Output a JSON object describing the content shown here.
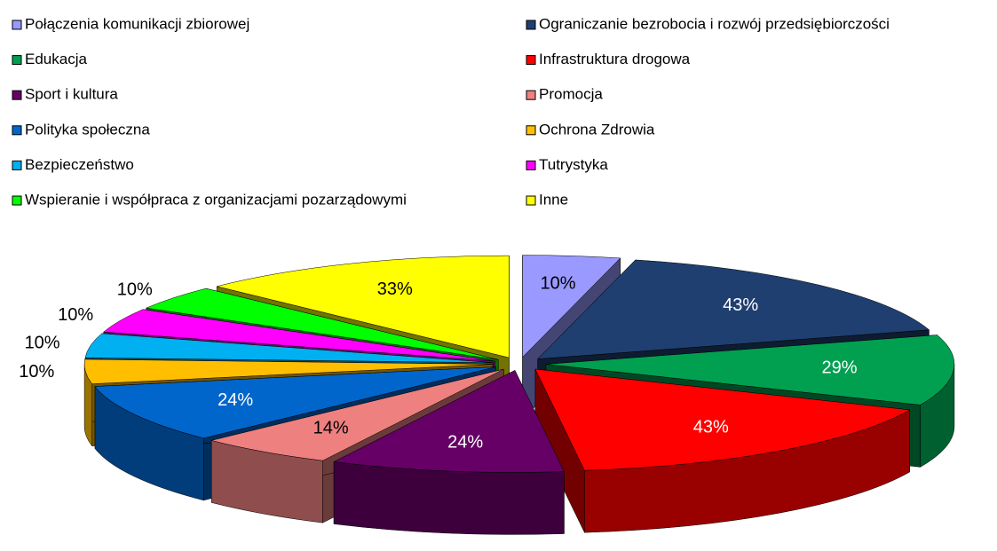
{
  "chart_data": {
    "type": "pie",
    "categories": [
      "Połączenia komunikacji zbiorowej",
      "Ograniczanie bezrobocia i rozwój przedsiębiorczości",
      "Edukacja",
      "Infrastruktura drogowa",
      "Sport i kultura",
      "Promocja",
      "Polityka społeczna",
      "Ochrona Zdrowia",
      "Bezpieczeństwo",
      "Tutrystyka",
      "Wspieranie i współpraca z organizacjami pozarządowymi",
      "Inne"
    ],
    "values": [
      10,
      43,
      29,
      43,
      24,
      14,
      24,
      10,
      10,
      10,
      10,
      33
    ],
    "value_labels": [
      "10%",
      "43%",
      "29%",
      "43%",
      "24%",
      "14%",
      "24%",
      "10%",
      "10%",
      "10%",
      "10%",
      "33%"
    ],
    "colors": [
      "#9999ff",
      "#1f3f70",
      "#00a050",
      "#ff0000",
      "#660066",
      "#ee8080",
      "#0066cc",
      "#ffbf00",
      "#00b0f0",
      "#ff00ff",
      "#00ff00",
      "#ffff00"
    ],
    "legend": "top"
  }
}
